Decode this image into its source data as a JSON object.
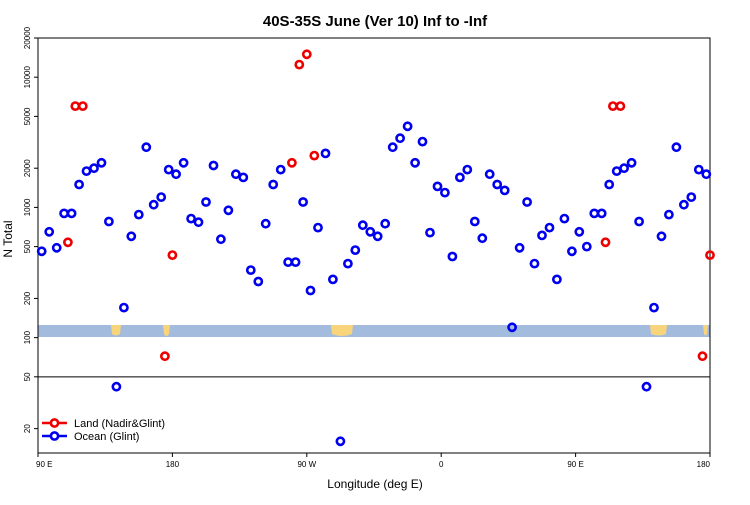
{
  "chart_data": {
    "type": "scatter",
    "title": "40S-35S June (Ver 10)   Inf to -Inf",
    "xlabel": "Longitude (deg E)",
    "ylabel": "N Total",
    "y_scale": "log",
    "ylim": [
      13,
      20000
    ],
    "x_tick_labels": [
      "90 E",
      "180",
      "90 W",
      "0",
      "90 E",
      "180"
    ],
    "y_tick_labels": [
      "20",
      "50",
      "100",
      "200",
      "500",
      "1000",
      "2000",
      "5000",
      "10000",
      "20000"
    ],
    "y_tick_values": [
      20,
      50,
      100,
      200,
      500,
      1000,
      2000,
      5000,
      10000,
      20000
    ],
    "legend_position": "bottom-left",
    "colors": {
      "land": "#ee0000",
      "ocean": "#0000ee",
      "map_band": "#a3bbdc",
      "continent": "#f8d57a"
    },
    "series": [
      {
        "name": "Land (Nadir&Glint)",
        "color": "#ee0000",
        "x": [
          110.0,
          115.0,
          120.0,
          175.0,
          180.0,
          260.0,
          265.0,
          270.0,
          275.0,
          470.0,
          475.0,
          480.0,
          535.0,
          540.0
        ],
        "y": [
          540,
          6000,
          6000,
          72,
          430,
          2200,
          12500,
          15000,
          2500,
          540,
          6000,
          6000,
          72,
          430
        ]
      },
      {
        "name": "Ocean (Glint)",
        "color": "#0000ee",
        "x": [
          92.5,
          97.5,
          102.5,
          107.5,
          112.5,
          117.5,
          122.5,
          127.5,
          132.5,
          137.5,
          142.5,
          147.5,
          152.5,
          157.5,
          162.5,
          167.5,
          172.5,
          177.5,
          182.5,
          187.5,
          192.5,
          197.5,
          202.5,
          207.5,
          212.5,
          217.5,
          222.5,
          227.5,
          232.5,
          237.5,
          242.5,
          247.5,
          252.5,
          257.5,
          262.5,
          267.5,
          272.5,
          277.5,
          282.5,
          287.5,
          292.5,
          297.5,
          302.5,
          307.5,
          312.5,
          317.5,
          322.5,
          327.5,
          332.5,
          337.5,
          342.5,
          347.5,
          352.5,
          357.5,
          362.5,
          367.5,
          372.5,
          377.5,
          382.5,
          387.5,
          392.5,
          397.5,
          402.5,
          407.5,
          412.5,
          417.5,
          422.5,
          427.5,
          432.5,
          437.5,
          442.5,
          447.5,
          452.5,
          457.5,
          462.5,
          467.5,
          472.5,
          477.5,
          482.5,
          487.5,
          492.5,
          497.5,
          502.5,
          507.5,
          512.5,
          517.5,
          522.5,
          527.5,
          532.5,
          537.5
        ],
        "y": [
          460,
          650,
          490,
          900,
          900,
          1500,
          1900,
          2000,
          2200,
          780,
          42,
          170,
          600,
          880,
          2900,
          1050,
          1200,
          1950,
          1800,
          2200,
          820,
          770,
          1100,
          2100,
          570,
          950,
          1800,
          1700,
          330,
          270,
          750,
          1500,
          1950,
          380,
          380,
          1100,
          230,
          700,
          2600,
          280,
          16,
          370,
          470,
          730,
          650,
          600,
          750,
          2900,
          3400,
          4200,
          2200,
          3200,
          640,
          1450,
          1300,
          420,
          1700,
          1950,
          780,
          580,
          1800,
          1500,
          1350,
          120,
          490,
          1100,
          370,
          610,
          700,
          280,
          820,
          460,
          650,
          500,
          900,
          900,
          1500,
          1900,
          2000,
          2200,
          780,
          42,
          170,
          600,
          880,
          2900,
          1050,
          1200,
          1950,
          1800
        ]
      }
    ]
  }
}
